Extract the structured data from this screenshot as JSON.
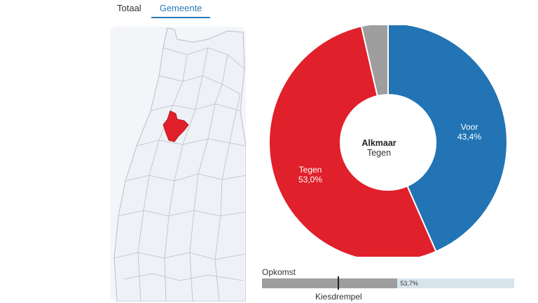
{
  "tabs": [
    {
      "label": "Totaal",
      "active": false
    },
    {
      "label": "Gemeente",
      "active": true
    }
  ],
  "map": {
    "highlight_color": "#e0202a",
    "fill_color": "#eef1f6",
    "border_color": "#b9bfc9"
  },
  "chart_data": {
    "type": "pie",
    "center_title": "Alkmaar",
    "center_subtitle": "Tegen",
    "slices": [
      {
        "name": "Voor",
        "value": 43.4,
        "display": "43,4%",
        "color": "#2274b4",
        "labeled": true
      },
      {
        "name": "Tegen",
        "value": 53.0,
        "display": "53,0%",
        "color": "#e0202a",
        "labeled": true
      },
      {
        "name": "",
        "value": 3.6,
        "display": "",
        "color": "#9e9e9e",
        "labeled": false
      }
    ]
  },
  "turnout": {
    "title": "Opkomst",
    "value": 53.7,
    "display": "53,7%",
    "threshold_label": "Kiesdrempel",
    "threshold_value": 30
  }
}
